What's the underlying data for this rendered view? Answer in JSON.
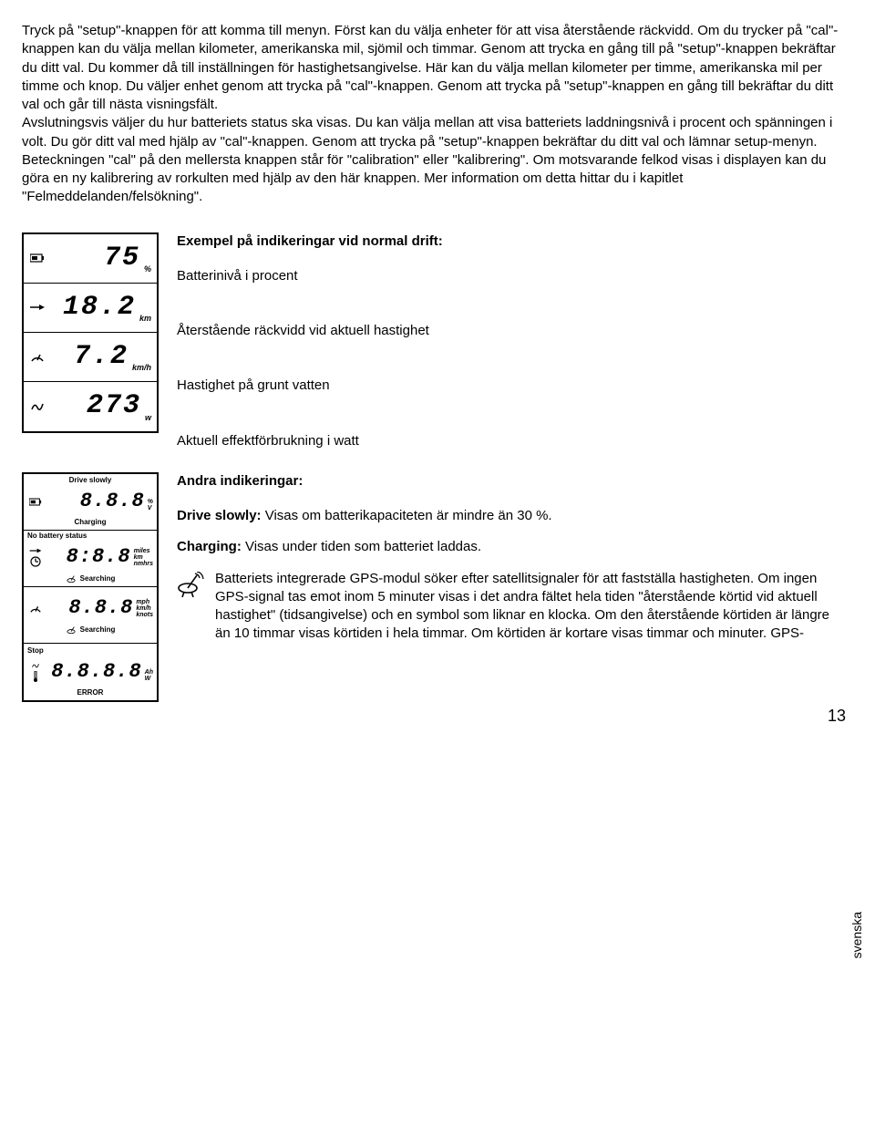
{
  "intro": "Tryck på \"setup\"-knappen för att komma till menyn. Först kan du välja enheter för att visa återstående räckvidd. Om du trycker på \"cal\"-knappen kan du välja mellan kilometer, amerikanska mil, sjömil och timmar. Genom att trycka en gång till på \"setup\"-knappen bekräftar du ditt val. Du kommer då till inställningen för hastighetsangivelse. Här kan du välja mellan kilometer per timme, amerikanska mil per timme och knop. Du väljer enhet genom att trycka på \"cal\"-knappen. Genom att trycka på \"setup\"-knappen en gång till bekräftar du ditt val och går till nästa visningsfält.\nAvslutningsvis väljer du hur batteriets status ska visas. Du kan välja mellan att visa batteriets laddningsnivå i procent och spänningen i volt. Du gör ditt val med hjälp av \"cal\"-knappen. Genom att trycka på \"setup\"-knappen bekräftar du ditt val och lämnar setup-menyn.\nBeteckningen \"cal\" på den mellersta knappen står för \"calibration\" eller \"kalibrering\". Om motsvarande felkod visas i displayen kan du göra en ny kalibrering av rorkulten med hjälp av den här knappen. Mer information om detta hittar du i kapitlet \"Felmeddelanden/felsökning\".",
  "examples": {
    "heading": "Exempel på indikeringar vid normal drift:",
    "rows": [
      {
        "value": "75",
        "unit": "%",
        "label": "Batterinivå i procent"
      },
      {
        "value": "18.2",
        "unit": "km",
        "label": "Återstående räckvidd vid aktuell hastighet"
      },
      {
        "value": "7.2",
        "unit": "km/h",
        "label": "Hastighet på grunt vatten"
      },
      {
        "value": "273",
        "unit": "w",
        "label": "Aktuell effektförbrukning i watt"
      }
    ]
  },
  "other": {
    "heading": "Andra indikeringar:",
    "drive_slowly_term": "Drive slowly:",
    "drive_slowly_text": " Visas om batterikapaciteten är mindre än 30 %.",
    "charging_term": "Charging:",
    "charging_text": " Visas under tiden som batteriet laddas.",
    "gps_text": "Batteriets integrerade GPS-modul söker efter satellitsignaler för att fastställa hastigheten. Om ingen GPS-signal tas emot inom 5 minuter visas i det andra fältet hela tiden \"återstående körtid vid aktuell hastighet\" (tidsangivelse) och en symbol som liknar en klocka. Om den återstående körtiden är längre än 10 timmar visas körtiden i hela timmar. Om körtiden är kortare visas timmar och minuter. GPS-"
  },
  "box2": {
    "drive_slowly": "Drive slowly",
    "charging": "Charging",
    "no_battery": "No battery status",
    "searching": "Searching",
    "stop": "Stop",
    "error": "ERROR",
    "seg1": "8.8.8",
    "seg2": "8:8.8",
    "seg3": "8.8.8",
    "seg4": "8.8.8.8",
    "units1a": "%",
    "units1b": "V",
    "units2a": "miles",
    "units2b": "km",
    "units2c": "nmhrs",
    "units3a": "mph",
    "units3b": "km/h",
    "units3c": "knots",
    "units4a": "Ah",
    "units4b": "W"
  },
  "side_tab": "svenska",
  "page_number": "13"
}
